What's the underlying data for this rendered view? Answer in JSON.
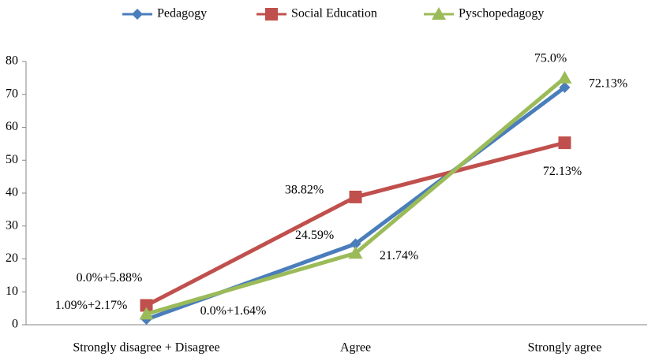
{
  "chart_data": {
    "type": "line",
    "categories": [
      "Strongly disagree + Disagree",
      "Agree",
      "Strongly agree"
    ],
    "series": [
      {
        "name": "Pedagogy",
        "color": "#4a7ebb",
        "marker": "diamond",
        "values": [
          1.64,
          24.59,
          72.13
        ],
        "value_labels": [
          "0.0%+1.64%",
          "24.59%",
          "72.13%"
        ]
      },
      {
        "name": "Social Education",
        "color": "#c0504d",
        "marker": "square",
        "values": [
          5.88,
          38.82,
          55.3
        ],
        "value_labels": [
          "0.0%+5.88%",
          "38.82%",
          null
        ]
      },
      {
        "name": "Pyschopedagogy",
        "color": "#9bbb59",
        "marker": "triangle",
        "values": [
          3.26,
          21.74,
          75.0
        ],
        "value_labels": [
          "1.09%+2.17%",
          "21.74%",
          "75.0%"
        ]
      }
    ],
    "annotations": [
      "72.13%"
    ],
    "ylim": [
      0,
      80
    ],
    "yticks": [
      0,
      10,
      20,
      30,
      40,
      50,
      60,
      70,
      80
    ],
    "legend": "top",
    "grid": false
  }
}
